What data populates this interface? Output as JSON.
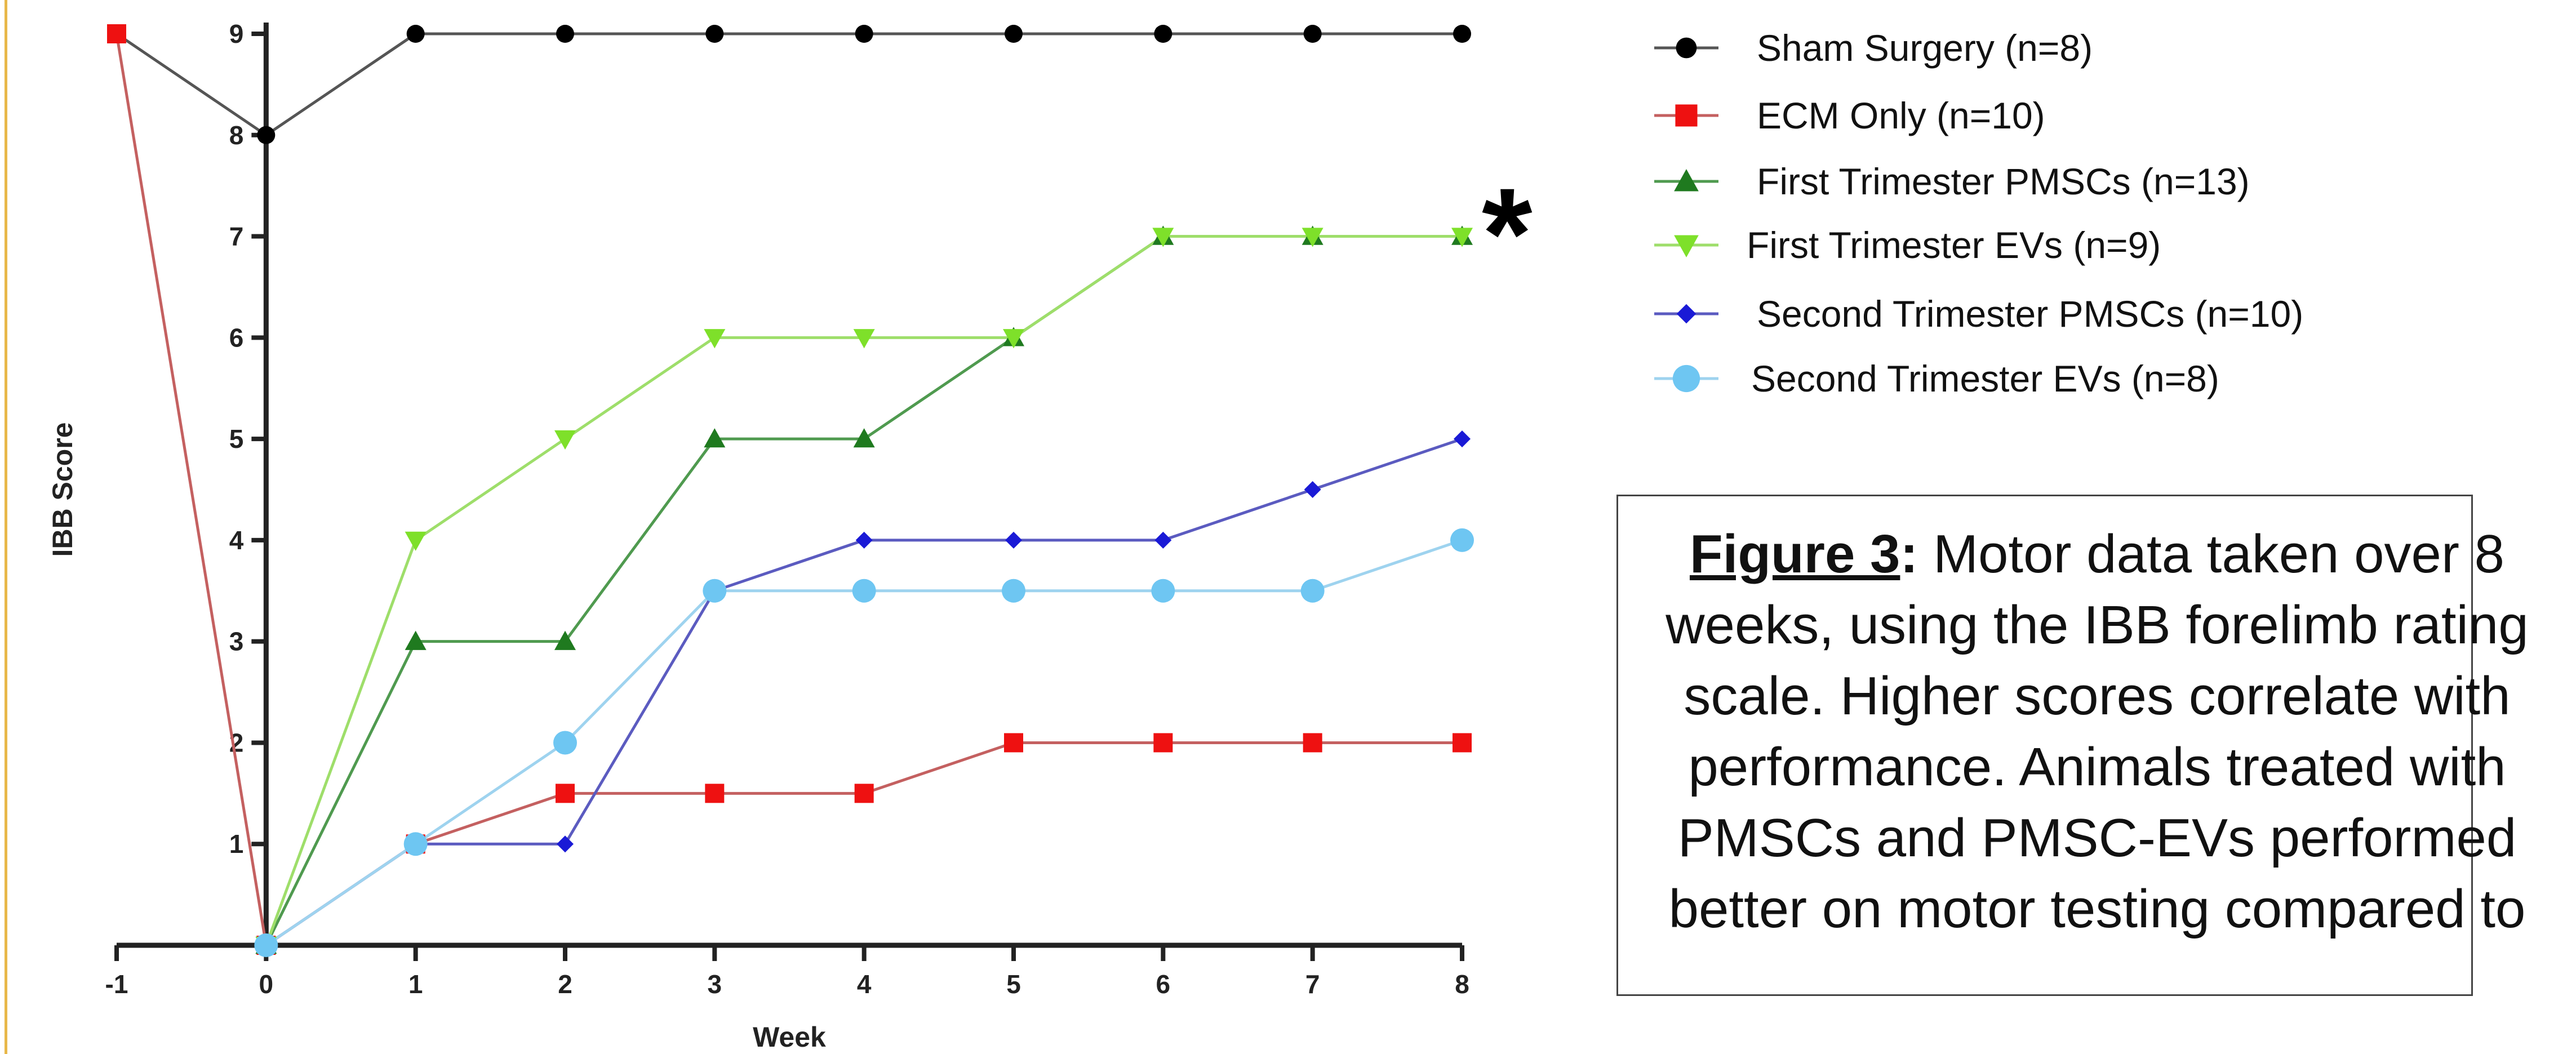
{
  "chart_data": {
    "type": "line",
    "xlabel": "Week",
    "ylabel": "IBB Score",
    "x": [
      -1,
      0,
      1,
      2,
      3,
      4,
      5,
      6,
      7,
      8
    ],
    "xlim": [
      -1,
      8
    ],
    "ylim": [
      0,
      9
    ],
    "yticks": [
      1,
      2,
      3,
      4,
      5,
      6,
      7,
      8,
      9
    ],
    "grid": false,
    "legend_position": "top-right",
    "annotation": "*",
    "series": [
      {
        "name": "Sham Surgery (n=8)",
        "marker": "circle",
        "color": "#000000",
        "line_color": "#555555",
        "values": [
          9,
          8,
          9,
          9,
          9,
          9,
          9,
          9,
          9,
          9
        ]
      },
      {
        "name": "ECM Only (n=10)",
        "marker": "square",
        "color": "#ee1111",
        "line_color": "#c46060",
        "values": [
          9,
          0,
          1,
          1.5,
          1.5,
          1.5,
          2,
          2,
          2,
          2
        ]
      },
      {
        "name": "First Trimester PMSCs (n=13)",
        "marker": "triangle-up",
        "color": "#1f7a1f",
        "line_color": "#4f9a4f",
        "values": [
          null,
          0,
          3,
          3,
          5,
          5,
          6,
          7,
          7,
          7
        ]
      },
      {
        "name": "First Trimester EVs (n=9)",
        "marker": "triangle-down",
        "color": "#7ee02a",
        "line_color": "#9ede6a",
        "values": [
          null,
          0,
          4,
          5,
          6,
          6,
          6,
          7,
          7,
          7
        ]
      },
      {
        "name": "Second Trimester PMSCs (n=10)",
        "marker": "diamond",
        "color": "#1a1ad6",
        "line_color": "#5b5bc0",
        "values": [
          null,
          0,
          1,
          1,
          3.5,
          4,
          4,
          4,
          4.5,
          5
        ]
      },
      {
        "name": "Second Trimester EVs (n=8)",
        "marker": "circle-large",
        "color": "#6ec6f2",
        "line_color": "#9ed3ef",
        "values": [
          null,
          0,
          1,
          2,
          3.5,
          3.5,
          3.5,
          3.5,
          3.5,
          4
        ]
      }
    ]
  },
  "caption": {
    "label": "Figure 3",
    "colon": ":",
    "text": " Motor data taken over 8 weeks, using the IBB forelimb rating scale. Higher scores correlate with performance. Animals treated with PMSCs and PMSC-EVs performed better on motor testing compared to"
  },
  "colors": {
    "frame_line": "#e8b84a",
    "axis": "#222222"
  }
}
